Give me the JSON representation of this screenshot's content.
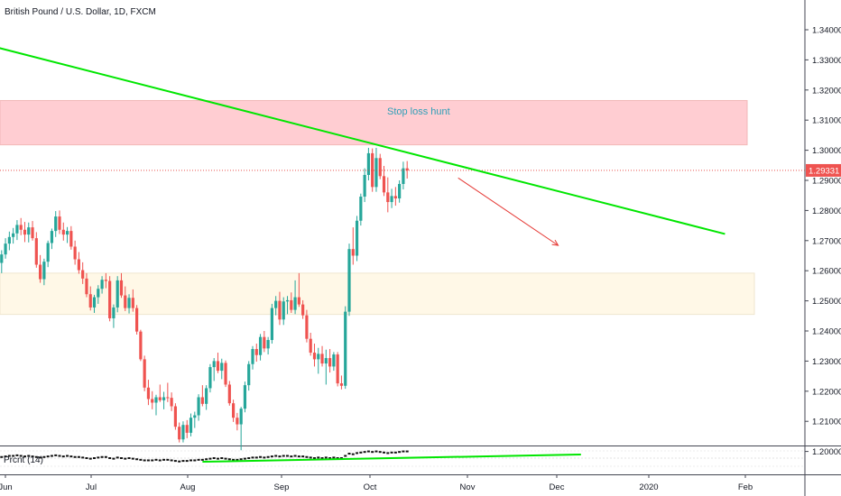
{
  "header": {
    "title": "British Pound / U.S. Dollar, 1D, FXCM"
  },
  "indicator": {
    "label": "Prcnt (14)"
  },
  "chart_data": {
    "type": "candlestick",
    "title": "British Pound / U.S. Dollar, 1D, FXCM",
    "y_ticks": [
      "1.34000",
      "1.33000",
      "1.32000",
      "1.31000",
      "1.30000",
      "1.29000",
      "1.28000",
      "1.27000",
      "1.26000",
      "1.25000",
      "1.24000",
      "1.23000",
      "1.22000",
      "1.21000",
      "1.20000"
    ],
    "ylim": [
      1.1955,
      1.3465
    ],
    "x_ticks": [
      "Jun",
      "Jul",
      "Aug",
      "Sep",
      "Oct",
      "Nov",
      "Dec",
      "2020",
      "Feb"
    ],
    "last_price": "1.29331",
    "grid": false,
    "colors": {
      "up": "#26a69a",
      "down": "#ef5350",
      "trendline": "#00e600",
      "arrow": "#e53935",
      "price_line": "#e53935"
    },
    "annotations": [
      {
        "text": "Stop loss hunt",
        "kind": "zone",
        "color": "#ffcdd2",
        "from_price": 1.3018,
        "to_price": 1.3165
      },
      {
        "text": "",
        "kind": "zone",
        "color": "#fff8e7",
        "from_price": 1.2455,
        "to_price": 1.2592
      }
    ],
    "ohlc": [
      [
        1.2626,
        1.2668,
        1.2592,
        1.2654
      ],
      [
        1.2654,
        1.2708,
        1.264,
        1.269
      ],
      [
        1.269,
        1.273,
        1.2668,
        1.2712
      ],
      [
        1.2712,
        1.2742,
        1.269,
        1.2724
      ],
      [
        1.2724,
        1.2768,
        1.2702,
        1.2752
      ],
      [
        1.2752,
        1.2775,
        1.2718,
        1.2736
      ],
      [
        1.2736,
        1.2762,
        1.2695,
        1.272
      ],
      [
        1.272,
        1.276,
        1.2694,
        1.2744
      ],
      [
        1.2744,
        1.2765,
        1.27,
        1.2708
      ],
      [
        1.2708,
        1.2728,
        1.261,
        1.262
      ],
      [
        1.262,
        1.2652,
        1.256,
        1.2572
      ],
      [
        1.2572,
        1.264,
        1.2552,
        1.263
      ],
      [
        1.263,
        1.27,
        1.2612,
        1.2692
      ],
      [
        1.2692,
        1.274,
        1.2672,
        1.2732
      ],
      [
        1.2732,
        1.2798,
        1.2712,
        1.278
      ],
      [
        1.278,
        1.28,
        1.2722,
        1.2736
      ],
      [
        1.2736,
        1.276,
        1.27,
        1.272
      ],
      [
        1.272,
        1.2745,
        1.2692,
        1.2732
      ],
      [
        1.2732,
        1.2748,
        1.267,
        1.268
      ],
      [
        1.268,
        1.27,
        1.262,
        1.2638
      ],
      [
        1.2638,
        1.2662,
        1.259,
        1.2602
      ],
      [
        1.2602,
        1.2628,
        1.2556,
        1.2574
      ],
      [
        1.2574,
        1.2592,
        1.2512,
        1.2522
      ],
      [
        1.2522,
        1.2548,
        1.2468,
        1.2478
      ],
      [
        1.2478,
        1.252,
        1.246,
        1.2512
      ],
      [
        1.2512,
        1.2552,
        1.249,
        1.254
      ],
      [
        1.254,
        1.2582,
        1.2524,
        1.257
      ],
      [
        1.257,
        1.2592,
        1.2542,
        1.2566
      ],
      [
        1.2566,
        1.2582,
        1.2432,
        1.2442
      ],
      [
        1.2442,
        1.2488,
        1.241,
        1.2478
      ],
      [
        1.2478,
        1.2582,
        1.2462,
        1.2568
      ],
      [
        1.2568,
        1.2592,
        1.251,
        1.2518
      ],
      [
        1.2518,
        1.2548,
        1.2466,
        1.2476
      ],
      [
        1.2476,
        1.2522,
        1.2458,
        1.251
      ],
      [
        1.251,
        1.2538,
        1.2464,
        1.2476
      ],
      [
        1.2476,
        1.2486,
        1.2388,
        1.2398
      ],
      [
        1.2398,
        1.2404,
        1.23,
        1.2306
      ],
      [
        1.2306,
        1.2318,
        1.22,
        1.2212
      ],
      [
        1.2212,
        1.2238,
        1.2154,
        1.2174
      ],
      [
        1.2174,
        1.22,
        1.214,
        1.2162
      ],
      [
        1.2162,
        1.2188,
        1.212,
        1.218
      ],
      [
        1.218,
        1.2222,
        1.2164,
        1.217
      ],
      [
        1.217,
        1.2198,
        1.214,
        1.218
      ],
      [
        1.218,
        1.2228,
        1.2164,
        1.2178
      ],
      [
        1.2178,
        1.2196,
        1.2134,
        1.215
      ],
      [
        1.215,
        1.216,
        1.2072,
        1.2082
      ],
      [
        1.2082,
        1.2096,
        1.203,
        1.204
      ],
      [
        1.204,
        1.21,
        1.203,
        1.2088
      ],
      [
        1.2088,
        1.2104,
        1.2044,
        1.2062
      ],
      [
        1.2062,
        1.2126,
        1.205,
        1.2112
      ],
      [
        1.2112,
        1.2132,
        1.2078,
        1.212
      ],
      [
        1.212,
        1.219,
        1.2102,
        1.218
      ],
      [
        1.218,
        1.222,
        1.215,
        1.2158
      ],
      [
        1.2158,
        1.222,
        1.2138,
        1.221
      ],
      [
        1.221,
        1.229,
        1.2196,
        1.228
      ],
      [
        1.228,
        1.231,
        1.2234,
        1.23
      ],
      [
        1.23,
        1.2328,
        1.226,
        1.2268
      ],
      [
        1.2268,
        1.2308,
        1.224,
        1.2294
      ],
      [
        1.2294,
        1.2302,
        1.2214,
        1.2222
      ],
      [
        1.2222,
        1.2234,
        1.2152,
        1.216
      ],
      [
        1.216,
        1.2172,
        1.2098,
        1.2112
      ],
      [
        1.2112,
        1.2128,
        1.207,
        1.209
      ],
      [
        1.209,
        1.2148,
        1.2004,
        1.2142
      ],
      [
        1.2142,
        1.2232,
        1.213,
        1.222
      ],
      [
        1.222,
        1.23,
        1.2202,
        1.229
      ],
      [
        1.229,
        1.235,
        1.2272,
        1.234
      ],
      [
        1.234,
        1.2358,
        1.2298,
        1.232
      ],
      [
        1.232,
        1.239,
        1.2302,
        1.238
      ],
      [
        1.238,
        1.24,
        1.233,
        1.2342
      ],
      [
        1.2342,
        1.238,
        1.2322,
        1.237
      ],
      [
        1.237,
        1.249,
        1.2358,
        1.2476
      ],
      [
        1.2476,
        1.2516,
        1.2452,
        1.25
      ],
      [
        1.25,
        1.253,
        1.242,
        1.2438
      ],
      [
        1.2438,
        1.2512,
        1.242,
        1.2498
      ],
      [
        1.2498,
        1.2516,
        1.2456,
        1.2502
      ],
      [
        1.2502,
        1.2528,
        1.246,
        1.247
      ],
      [
        1.247,
        1.2568,
        1.2456,
        1.2512
      ],
      [
        1.2512,
        1.2592,
        1.248,
        1.2488
      ],
      [
        1.2488,
        1.2502,
        1.244,
        1.2452
      ],
      [
        1.2452,
        1.247,
        1.2362,
        1.2374
      ],
      [
        1.2374,
        1.2394,
        1.2318,
        1.2328
      ],
      [
        1.2328,
        1.2358,
        1.2282,
        1.2306
      ],
      [
        1.2306,
        1.2344,
        1.2258,
        1.2324
      ],
      [
        1.2324,
        1.235,
        1.2282,
        1.2292
      ],
      [
        1.2292,
        1.2338,
        1.2222,
        1.231
      ],
      [
        1.231,
        1.234,
        1.2262,
        1.2282
      ],
      [
        1.2282,
        1.233,
        1.2268,
        1.2322
      ],
      [
        1.2322,
        1.233,
        1.2216,
        1.2226
      ],
      [
        1.2226,
        1.2252,
        1.2206,
        1.2218
      ],
      [
        1.2218,
        1.2482,
        1.2208,
        1.2464
      ],
      [
        1.2464,
        1.269,
        1.245,
        1.2672
      ],
      [
        1.2672,
        1.2744,
        1.262,
        1.265
      ],
      [
        1.265,
        1.2782,
        1.2632,
        1.2766
      ],
      [
        1.2766,
        1.2856,
        1.275,
        1.2846
      ],
      [
        1.2846,
        1.294,
        1.2828,
        1.2918
      ],
      [
        1.2918,
        1.3008,
        1.29,
        1.299
      ],
      [
        1.299,
        1.3006,
        1.2862,
        1.2878
      ],
      [
        1.2878,
        1.3008,
        1.2862,
        1.2974
      ],
      [
        1.2974,
        1.2988,
        1.2904,
        1.2914
      ],
      [
        1.2914,
        1.2948,
        1.2848,
        1.286
      ],
      [
        1.286,
        1.291,
        1.2794,
        1.2828
      ],
      [
        1.2828,
        1.2872,
        1.2808,
        1.2848
      ],
      [
        1.2848,
        1.2878,
        1.2816,
        1.284
      ],
      [
        1.284,
        1.29,
        1.2826,
        1.2888
      ],
      [
        1.2888,
        1.2962,
        1.287,
        1.294
      ],
      [
        1.294,
        1.2964,
        1.2906,
        1.2933
      ]
    ],
    "trendlines": [
      {
        "from": {
          "bar": -1.4,
          "price": 1.3342
        },
        "to": {
          "bar": 187.3,
          "price": 1.2722
        }
      }
    ],
    "arrow": {
      "from": {
        "bar": 118.2,
        "price": 1.2908
      },
      "to": {
        "bar": 144.1,
        "price": 1.2684
      }
    },
    "indicator": {
      "name": "Prcnt (14)",
      "values": [
        2,
        3,
        4,
        4,
        5,
        4,
        3,
        4,
        3,
        2,
        1,
        2,
        3,
        4,
        5,
        4,
        3,
        4,
        3,
        2,
        2,
        1,
        0,
        -1,
        0,
        1,
        2,
        2,
        0,
        -1,
        1,
        0,
        -1,
        0,
        -1,
        -2,
        -3,
        -4,
        -4,
        -4,
        -3,
        -4,
        -3,
        -3,
        -4,
        -5,
        -6,
        -5,
        -5,
        -4,
        -4,
        -3,
        -3,
        -2,
        -1,
        0,
        -1,
        0,
        -1,
        -2,
        -3,
        -3,
        -2,
        -1,
        0,
        1,
        1,
        2,
        1,
        2,
        3,
        4,
        3,
        4,
        4,
        3,
        4,
        3,
        3,
        2,
        1,
        0,
        1,
        0,
        1,
        0,
        1,
        0,
        0,
        4,
        8,
        7,
        9,
        10,
        11,
        12,
        11,
        12,
        11,
        10,
        9,
        10,
        10,
        11,
        12,
        12
      ],
      "trendlines": [
        {
          "from": {
            "bar": 52,
            "value": -6.5
          },
          "to": {
            "bar": 150,
            "value": 6.5
          }
        }
      ]
    }
  }
}
